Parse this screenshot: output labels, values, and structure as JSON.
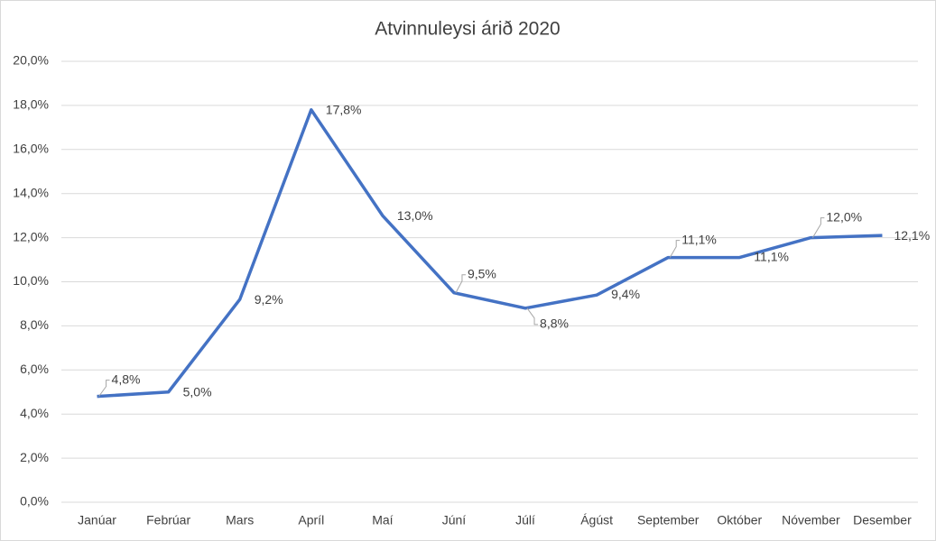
{
  "chart_data": {
    "type": "line",
    "title": "Atvinnuleysi árið 2020",
    "categories": [
      "Janúar",
      "Febrúar",
      "Mars",
      "Apríl",
      "Maí",
      "Júní",
      "Júlí",
      "Ágúst",
      "September",
      "Október",
      "Nóvember",
      "Desember"
    ],
    "series": [
      {
        "color": "#4472c4",
        "values": [
          4.8,
          5.0,
          9.2,
          17.8,
          13.0,
          9.5,
          8.8,
          9.4,
          11.1,
          11.1,
          12.0,
          12.1
        ],
        "value_labels": [
          "4,8%",
          "5,0%",
          "9,2%",
          "17,8%",
          "13,0%",
          "9,5%",
          "8,8%",
          "9,4%",
          "11,1%",
          "11,1%",
          "12,0%",
          "12,1%"
        ]
      }
    ],
    "ylim": [
      0,
      20
    ],
    "yticks": [
      {
        "value": 0,
        "label": "0,0%"
      },
      {
        "value": 2,
        "label": "2,0%"
      },
      {
        "value": 4,
        "label": "4,0%"
      },
      {
        "value": 6,
        "label": "6,0%"
      },
      {
        "value": 8,
        "label": "8,0%"
      },
      {
        "value": 10,
        "label": "10,0%"
      },
      {
        "value": 12,
        "label": "12,0%"
      },
      {
        "value": 14,
        "label": "14,0%"
      },
      {
        "value": 16,
        "label": "16,0%"
      },
      {
        "value": 18,
        "label": "18,0%"
      },
      {
        "value": 20,
        "label": "20,0%"
      }
    ],
    "grid": true
  }
}
